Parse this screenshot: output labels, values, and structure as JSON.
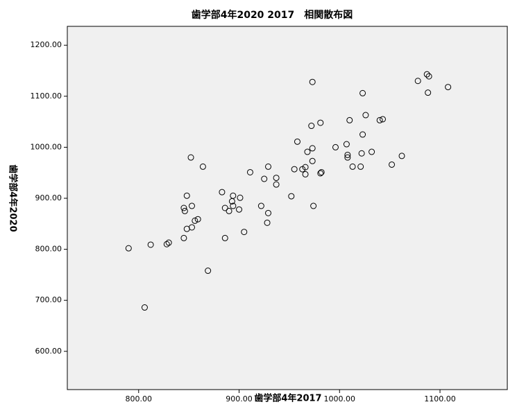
{
  "chart_data": {
    "type": "scatter",
    "title": "歯学部4年2020 2017　相関散布図",
    "x_label": "歯学部4年2017",
    "y_label": "歯学部4年2020",
    "xlim": [
      729,
      1167
    ],
    "ylim": [
      525,
      1237
    ],
    "xticks": [
      {
        "value": 800,
        "label": "800.00"
      },
      {
        "value": 900,
        "label": "900.00"
      },
      {
        "value": 1000,
        "label": "1000.00"
      },
      {
        "value": 1100,
        "label": "1100.00"
      }
    ],
    "yticks": [
      {
        "value": 600,
        "label": "600.00"
      },
      {
        "value": 700,
        "label": "700.00"
      },
      {
        "value": 800,
        "label": "800.00"
      },
      {
        "value": 900,
        "label": "900.00"
      },
      {
        "value": 1000,
        "label": "1000.00"
      },
      {
        "value": 1100,
        "label": "1100.00"
      },
      {
        "value": 1200,
        "label": "1200.00"
      }
    ],
    "color": "#000000",
    "background": "#f0f0f0",
    "x": [
      790,
      806,
      812,
      828,
      830,
      845,
      845,
      848,
      846,
      848,
      852,
      853,
      853,
      856,
      859,
      864,
      869,
      883,
      886,
      886,
      890,
      893,
      894,
      894,
      901,
      900,
      905,
      911,
      922,
      925,
      929,
      928,
      929,
      937,
      937,
      952,
      955,
      958,
      963,
      966,
      966,
      968,
      972,
      973,
      973,
      973,
      974,
      981,
      981,
      982,
      996,
      1007,
      1008,
      1008,
      1010,
      1013,
      1021,
      1022,
      1023,
      1023,
      1026,
      1032,
      1040,
      1043,
      1052,
      1062,
      1078,
      1087,
      1089,
      1088,
      1108
    ],
    "values": [
      802,
      686,
      809,
      810,
      813,
      822,
      881,
      905,
      875,
      840,
      980,
      885,
      843,
      856,
      859,
      962,
      758,
      912,
      881,
      822,
      875,
      894,
      905,
      885,
      901,
      878,
      834,
      951,
      885,
      938,
      962,
      852,
      871,
      940,
      927,
      904,
      957,
      1011,
      957,
      947,
      961,
      991,
      1042,
      998,
      973,
      1128,
      885,
      1048,
      949,
      951,
      1000,
      1006,
      985,
      980,
      1053,
      962,
      962,
      988,
      1025,
      1106,
      1063,
      991,
      1053,
      1055,
      966,
      983,
      1130,
      1143,
      1139,
      1107,
      1118
    ]
  }
}
